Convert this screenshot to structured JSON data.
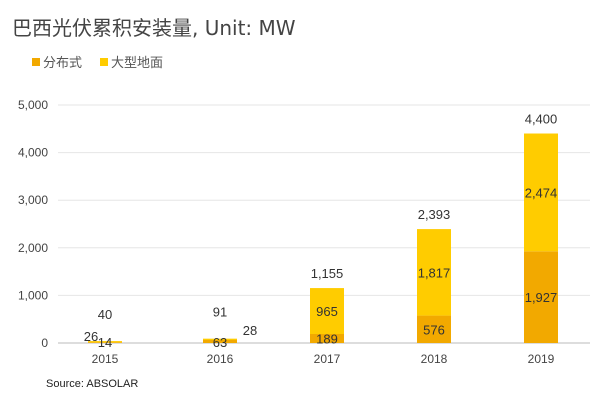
{
  "chart_data": {
    "type": "bar",
    "stacked": true,
    "title": "巴西光伏累积安装量, Unit: MW",
    "categories": [
      "2015",
      "2016",
      "2017",
      "2018",
      "2019"
    ],
    "series": [
      {
        "name": "分布式",
        "color": "#F2A900",
        "values": [
          14,
          63,
          189,
          576,
          1927
        ]
      },
      {
        "name": "大型地面",
        "color": "#FFCC00",
        "values": [
          26,
          28,
          965,
          1817,
          2474
        ]
      }
    ],
    "totals": [
      40,
      91,
      1155,
      2393,
      4400
    ],
    "ylim": [
      0,
      5000
    ],
    "yticks": [
      "0",
      "1,000",
      "2,000",
      "3,000",
      "4,000",
      "5,000"
    ],
    "grid": true,
    "legend": "top-left",
    "source": "Source: ABSOLAR"
  }
}
